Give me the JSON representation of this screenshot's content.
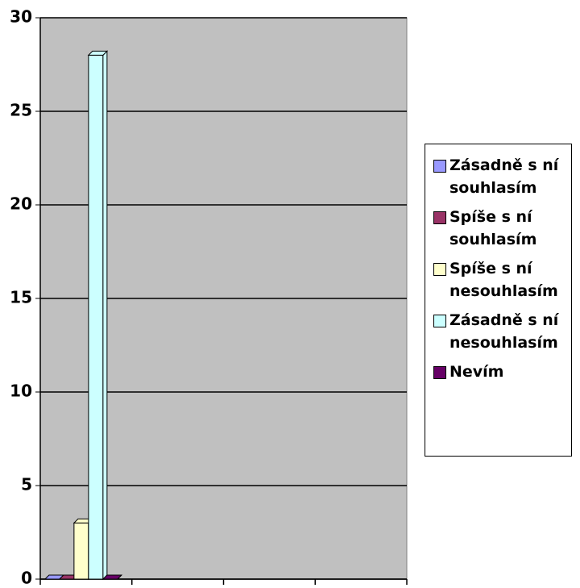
{
  "chart_data": {
    "type": "bar",
    "categories": [
      null,
      null,
      null,
      null
    ],
    "series": [
      {
        "name": "Zásadně s ní souhlasím",
        "color": "#9999FF",
        "values": [
          0,
          null,
          null,
          null
        ]
      },
      {
        "name": "Spíše s ní souhlasím",
        "color": "#993366",
        "values": [
          0,
          null,
          null,
          null
        ]
      },
      {
        "name": "Spíše s ní nesouhlasím",
        "color": "#FFFFCC",
        "values": [
          3,
          null,
          null,
          null
        ]
      },
      {
        "name": "Zásadně s ní nesouhlasím",
        "color": "#CCFFFF",
        "values": [
          28,
          null,
          null,
          null
        ]
      },
      {
        "name": "Nevím",
        "color": "#660066",
        "values": [
          0,
          null,
          null,
          null
        ]
      }
    ],
    "ylim": [
      0,
      30
    ],
    "yticks": [
      0,
      5,
      10,
      15,
      20,
      25,
      30
    ],
    "grid": true,
    "plot_background": "#C0C0C0"
  }
}
